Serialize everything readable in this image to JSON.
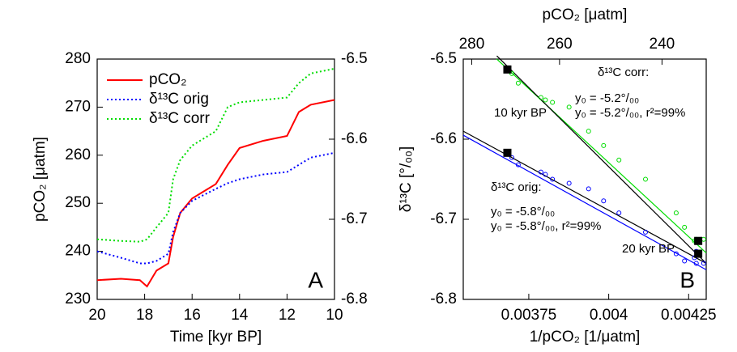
{
  "chart_data": [
    {
      "type": "line",
      "xlabel": "Time [kyr BP]",
      "ylabel": "pCO₂ [μatm]",
      "xlim": [
        20,
        10
      ],
      "xticks": [
        20,
        18,
        16,
        14,
        12,
        10
      ],
      "ylim": [
        230,
        280
      ],
      "yticks": [
        230,
        240,
        250,
        260,
        270,
        280
      ],
      "y2lim": [
        -6.8,
        -6.5
      ],
      "y2ticks": [
        -6.8,
        -6.7,
        -6.6,
        -6.5
      ],
      "legend": "upper left",
      "panel_label": "A",
      "x": [
        20,
        19,
        18.2,
        17.9,
        17.5,
        17,
        16.8,
        16.5,
        16,
        15,
        14.5,
        14,
        13,
        12,
        11.5,
        11,
        10
      ],
      "series": [
        {
          "name": "pCO₂",
          "color": "#ff0000",
          "line_style": "solid",
          "values": [
            234,
            234.3,
            234,
            232.7,
            236,
            237.5,
            243,
            248,
            251,
            254,
            258,
            261.5,
            263,
            264,
            269,
            270.5,
            271.5
          ]
        },
        {
          "name": "δ¹³C orig",
          "color": "#0000ff",
          "line_style": "dotted",
          "axis": "y2",
          "values": [
            -6.74,
            -6.748,
            -6.755,
            -6.755,
            -6.752,
            -6.743,
            -6.716,
            -6.692,
            -6.677,
            -6.662,
            -6.655,
            -6.65,
            -6.644,
            -6.641,
            -6.632,
            -6.623,
            -6.617
          ]
        },
        {
          "name": "δ¹³C corr",
          "color": "#00dd00",
          "line_style": "dotted",
          "axis": "y2",
          "values": [
            -6.725,
            -6.727,
            -6.728,
            -6.725,
            -6.71,
            -6.692,
            -6.65,
            -6.626,
            -6.608,
            -6.59,
            -6.56,
            -6.554,
            -6.551,
            -6.548,
            -6.53,
            -6.518,
            -6.512
          ]
        }
      ]
    },
    {
      "type": "scatter",
      "xlabel": "1/pCO₂ [1/μatm]",
      "ylabel": "δ¹³C [°/₀₀]",
      "x2label": "pCO₂ [μatm]",
      "xlim": [
        0.003545,
        0.004305
      ],
      "xticks": [
        0.00375,
        0.004,
        0.00425
      ],
      "x2ticks": [
        280,
        260,
        240
      ],
      "x2_scale": "reciprocal",
      "ylim": [
        -6.8,
        -6.5
      ],
      "yticks": [
        -6.8,
        -6.7,
        -6.6,
        -6.5
      ],
      "panel_label": "B",
      "series": [
        {
          "color": "#00dd00",
          "x": [
            0.004274,
            0.004268,
            0.004274,
            0.004297,
            0.004237,
            0.004211,
            0.004115,
            0.004032,
            0.003984,
            0.003937,
            0.003876,
            0.003824,
            0.003802,
            0.003788,
            0.003717,
            0.003697,
            0.003683
          ],
          "values": [
            -6.725,
            -6.727,
            -6.728,
            -6.725,
            -6.71,
            -6.692,
            -6.65,
            -6.626,
            -6.608,
            -6.59,
            -6.56,
            -6.554,
            -6.551,
            -6.548,
            -6.53,
            -6.518,
            -6.512
          ]
        },
        {
          "color": "#0000ff",
          "x": [
            0.004274,
            0.004268,
            0.004274,
            0.004297,
            0.004237,
            0.004211,
            0.004115,
            0.004032,
            0.003984,
            0.003937,
            0.003876,
            0.003824,
            0.003802,
            0.003788,
            0.003717,
            0.003697,
            0.003683
          ],
          "values": [
            -6.74,
            -6.748,
            -6.755,
            -6.755,
            -6.752,
            -6.743,
            -6.716,
            -6.692,
            -6.677,
            -6.662,
            -6.655,
            -6.65,
            -6.644,
            -6.641,
            -6.632,
            -6.623,
            -6.617
          ]
        }
      ],
      "fits": [
        {
          "color": "#00dd00",
          "x": [
            0.00365,
            0.004305
          ],
          "y": [
            -6.5,
            -6.742
          ]
        },
        {
          "color": "#000000",
          "x": [
            0.00365,
            0.004305
          ],
          "y": [
            -6.496,
            -6.755
          ]
        },
        {
          "color": "#0000ff",
          "x": [
            0.003545,
            0.004305
          ],
          "y": [
            -6.595,
            -6.763
          ]
        },
        {
          "color": "#000000",
          "x": [
            0.003545,
            0.004305
          ],
          "y": [
            -6.59,
            -6.755
          ]
        }
      ],
      "markers": {
        "color": "#000000",
        "x": [
          0.003683,
          0.003683,
          0.00428,
          0.00428
        ],
        "y": [
          -6.513,
          -6.617,
          -6.727,
          -6.743
        ]
      },
      "annotations": [
        {
          "text": "δ¹³C corr:",
          "color": "#00dd00"
        },
        {
          "text": "y₀ = -5.2°/₀₀",
          "color": "#000000"
        },
        {
          "text": "y₀ = -5.2°/₀₀, r²=99%",
          "color": "#00dd00"
        },
        {
          "text": "10 kyr BP",
          "color": "#000000"
        },
        {
          "text": "δ¹³C orig:",
          "color": "#0000ff"
        },
        {
          "text": "y₀ = -5.8°/₀₀",
          "color": "#000000"
        },
        {
          "text": "y₀ = -5.8°/₀₀, r²=99%",
          "color": "#0000ff"
        },
        {
          "text": "20 kyr BP",
          "color": "#000000"
        }
      ]
    }
  ]
}
